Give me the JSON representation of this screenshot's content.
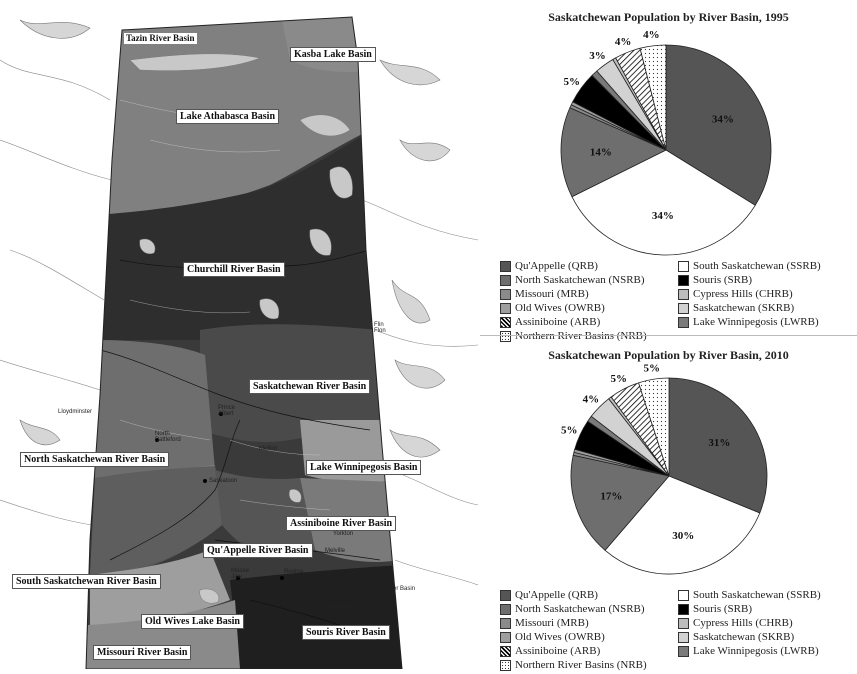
{
  "colors": {
    "QRB": "#555555",
    "SSRB": "#ffffff",
    "NSRB": "#6e6e6e",
    "SRB": "#000000",
    "MRB": "#8a8a8a",
    "CHRB": "#bdbdbd",
    "OWRB": "#9e9e9e",
    "SKRB": "#d2d2d2",
    "ARB": "hatch",
    "LWRB": "#7a7a7a",
    "NRB": "dots"
  },
  "map": {
    "basins": [
      {
        "id": "tazin",
        "label": "Tazin River Basin"
      },
      {
        "id": "kasba",
        "label": "Kasba Lake Basin"
      },
      {
        "id": "athabasca",
        "label": "Lake Athabasca Basin"
      },
      {
        "id": "churchill",
        "label": "Churchill River Basin"
      },
      {
        "id": "saskatchewan",
        "label": "Saskatchewan River Basin"
      },
      {
        "id": "north-sask",
        "label": "North Saskatchewan River Basin"
      },
      {
        "id": "winnipegosis",
        "label": "Lake Winnipegosis Basin"
      },
      {
        "id": "assiniboine",
        "label": "Assiniboine River Basin"
      },
      {
        "id": "quappelle",
        "label": "Qu'Appelle River Basin"
      },
      {
        "id": "south-sask",
        "label": "South Saskatchewan River Basin"
      },
      {
        "id": "old-wives",
        "label": "Old Wives Lake Basin"
      },
      {
        "id": "souris",
        "label": "Souris River Basin"
      },
      {
        "id": "missouri",
        "label": "Missouri River Basin"
      }
    ],
    "cities": [
      {
        "id": "flin-flon",
        "label": "Flin\nFlon"
      },
      {
        "id": "lloydminster",
        "label": "Lloydminster"
      },
      {
        "id": "prince-albert",
        "label": "Prince\nAlbert"
      },
      {
        "id": "north-battleford",
        "label": "North\nBattleford"
      },
      {
        "id": "melfort",
        "label": "Melfort"
      },
      {
        "id": "saskatoon",
        "label": "Saskatoon"
      },
      {
        "id": "yorkton",
        "label": "Yorkton"
      },
      {
        "id": "melville",
        "label": "Melville"
      },
      {
        "id": "moose-jaw",
        "label": "Moose\nJaw"
      },
      {
        "id": "regina",
        "label": "Regina"
      },
      {
        "id": "assiniboine-river",
        "label": "Assiniboine River Basin"
      },
      {
        "id": "weyburn",
        "label": "Weyburn"
      },
      {
        "id": "estevan",
        "label": "Estevan"
      }
    ]
  },
  "chart_data": [
    {
      "type": "pie",
      "title": "Saskatchewan Population by River Basin, 1995",
      "slices": [
        {
          "key": "QRB",
          "value": 34,
          "label": "34%"
        },
        {
          "key": "SSRB",
          "value": 34,
          "label": "34%"
        },
        {
          "key": "NSRB",
          "value": 14,
          "label": "14%"
        },
        {
          "key": "MRB",
          "value": 0.5,
          "label": ""
        },
        {
          "key": "OWRB",
          "value": 0.5,
          "label": ""
        },
        {
          "key": "SRB",
          "value": 5,
          "label": "5%"
        },
        {
          "key": "LWRB",
          "value": 1,
          "label": ""
        },
        {
          "key": "SKRB",
          "value": 3,
          "label": "3%"
        },
        {
          "key": "CHRB",
          "value": 0.5,
          "label": ""
        },
        {
          "key": "ARB",
          "value": 4,
          "label": "4%"
        },
        {
          "key": "NRB",
          "value": 4,
          "label": "4%"
        }
      ],
      "legend": [
        {
          "key": "QRB",
          "label": "Qu'Appelle (QRB)"
        },
        {
          "key": "SSRB",
          "label": "South Saskatchewan (SSRB)"
        },
        {
          "key": "NSRB",
          "label": "North Saskatchewan (NSRB)"
        },
        {
          "key": "SRB",
          "label": "Souris (SRB)"
        },
        {
          "key": "MRB",
          "label": "Missouri (MRB)"
        },
        {
          "key": "CHRB",
          "label": "Cypress Hills (CHRB)"
        },
        {
          "key": "OWRB",
          "label": "Old Wives (OWRB)"
        },
        {
          "key": "SKRB",
          "label": "Saskatchewan (SKRB)"
        },
        {
          "key": "ARB",
          "label": "Assiniboine (ARB)"
        },
        {
          "key": "LWRB",
          "label": "Lake Winnipegosis (LWRB)"
        },
        {
          "key": "NRB",
          "label": "Northern River Basins (NRB)"
        }
      ]
    },
    {
      "type": "pie",
      "title": "Saskatchewan Population by River Basin, 2010",
      "slices": [
        {
          "key": "QRB",
          "value": 31,
          "label": "31%"
        },
        {
          "key": "SSRB",
          "value": 30,
          "label": "30%"
        },
        {
          "key": "NSRB",
          "value": 17,
          "label": "17%"
        },
        {
          "key": "MRB",
          "value": 0.5,
          "label": ""
        },
        {
          "key": "OWRB",
          "value": 0.5,
          "label": ""
        },
        {
          "key": "SRB",
          "value": 5,
          "label": "5%"
        },
        {
          "key": "LWRB",
          "value": 1,
          "label": ""
        },
        {
          "key": "SKRB",
          "value": 4,
          "label": "4%"
        },
        {
          "key": "CHRB",
          "value": 0.5,
          "label": ""
        },
        {
          "key": "ARB",
          "value": 5,
          "label": "5%"
        },
        {
          "key": "NRB",
          "value": 5,
          "label": "5%"
        }
      ],
      "legend": [
        {
          "key": "QRB",
          "label": "Qu'Appelle (QRB)"
        },
        {
          "key": "SSRB",
          "label": "South Saskatchewan (SSRB)"
        },
        {
          "key": "NSRB",
          "label": "North Saskatchewan (NSRB)"
        },
        {
          "key": "SRB",
          "label": "Souris (SRB)"
        },
        {
          "key": "MRB",
          "label": "Missouri (MRB)"
        },
        {
          "key": "CHRB",
          "label": "Cypress Hills (CHRB)"
        },
        {
          "key": "OWRB",
          "label": "Old Wives (OWRB)"
        },
        {
          "key": "SKRB",
          "label": "Saskatchewan (SKRB)"
        },
        {
          "key": "ARB",
          "label": "Assiniboine (ARB)"
        },
        {
          "key": "LWRB",
          "label": "Lake Winnipegosis (LWRB)"
        },
        {
          "key": "NRB",
          "label": "Northern River Basins (NRB)"
        }
      ]
    }
  ]
}
